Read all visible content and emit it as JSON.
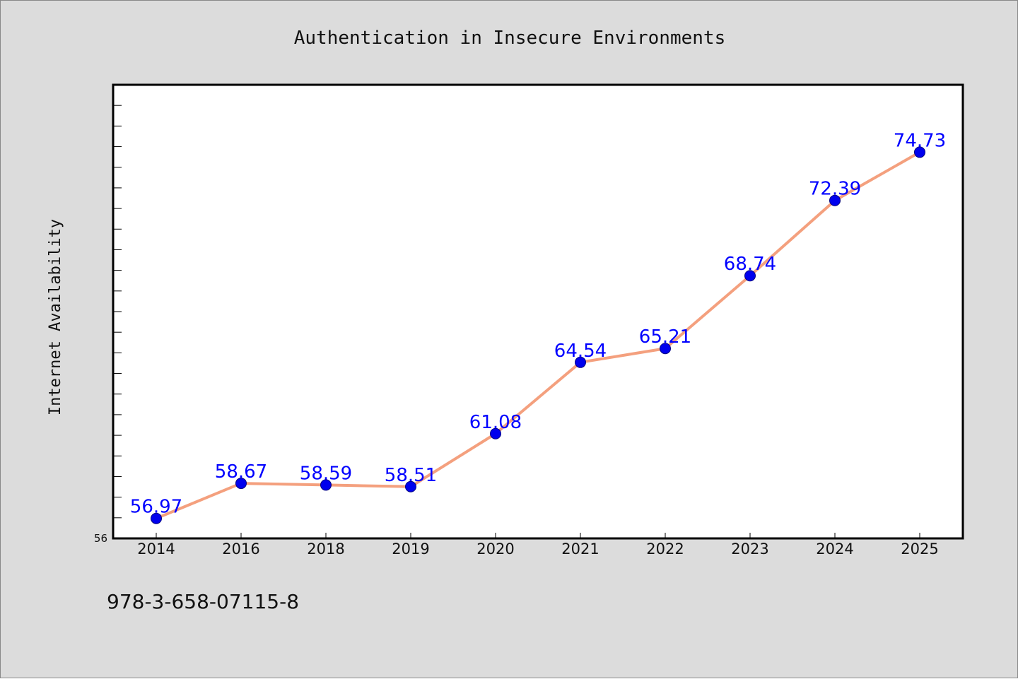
{
  "chart_data": {
    "type": "line",
    "title": "Authentication in Insecure Environments",
    "xlabel": "",
    "ylabel": "Internet Availability",
    "categories": [
      "2014",
      "2016",
      "2018",
      "2019",
      "2020",
      "2021",
      "2022",
      "2023",
      "2024",
      "2025"
    ],
    "series": [
      {
        "values": [
          56.97,
          58.67,
          58.59,
          58.51,
          61.08,
          64.54,
          65.21,
          68.74,
          72.39,
          74.73
        ],
        "labels": [
          "56.97",
          "58.67",
          "58.59",
          "58.51",
          "61.08",
          "64.54",
          "65.21",
          "68.74",
          "72.39",
          "74.73"
        ]
      }
    ],
    "ylim": [
      56,
      78
    ],
    "y_tick_label": "56",
    "minor_y_ticks": true,
    "grid": false,
    "legend": "none",
    "colors": {
      "line": "#f4a07e",
      "marker": "#0000ee",
      "marker_edge": "#000080",
      "data_label": "#0000ff",
      "figure_background": "#dcdcdc",
      "plot_background": "#ffffff"
    }
  },
  "footer": {
    "isbn": "978-3-658-07115-8"
  }
}
